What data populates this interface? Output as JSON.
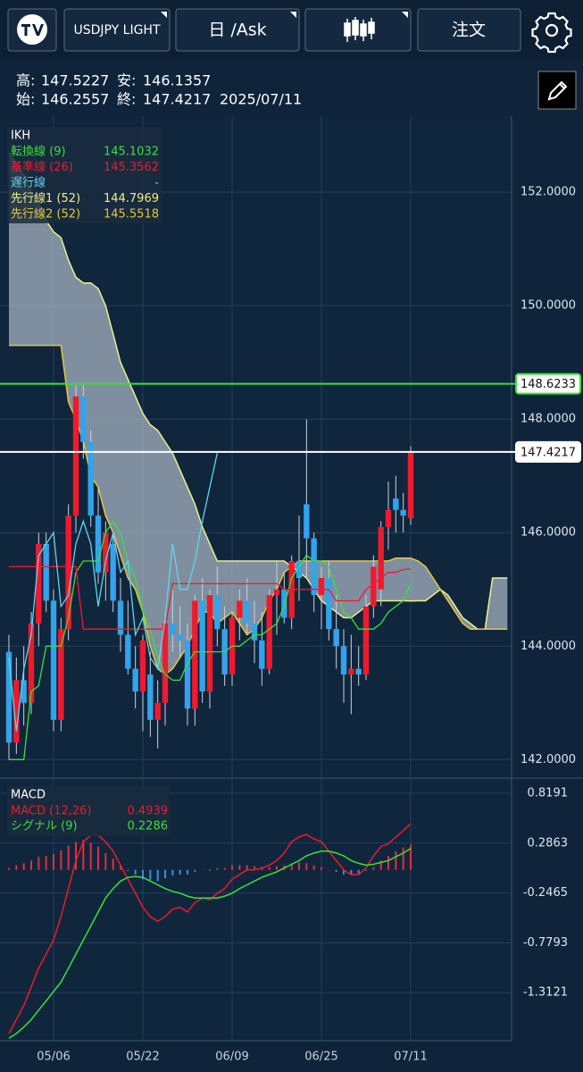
{
  "toolbar": {
    "symbol": "USDJPY LIGHT",
    "timeframe": "日 /Ask",
    "order": "注文"
  },
  "info": {
    "high_label": "高:",
    "high": "147.5227",
    "low_label": "安:",
    "low": "146.1357",
    "open_label": "始:",
    "open": "146.2557",
    "close_label": "終:",
    "close": "147.4217",
    "date": "2025/07/11"
  },
  "chart_data": [
    {
      "type": "candlestick",
      "legend_title": "IKH",
      "categories": [
        null,
        null,
        null,
        null,
        null,
        null,
        "05/06",
        null,
        null,
        null,
        null,
        null,
        null,
        null,
        null,
        null,
        null,
        null,
        "05/22",
        null,
        null,
        null,
        null,
        null,
        null,
        null,
        null,
        null,
        null,
        null,
        "06/09",
        null,
        null,
        null,
        null,
        null,
        null,
        null,
        null,
        null,
        null,
        null,
        "06/25",
        null,
        null,
        null,
        null,
        null,
        null,
        null,
        null,
        null,
        null,
        null,
        "07/11",
        null,
        null,
        null,
        null,
        null,
        null,
        null,
        null,
        null,
        null,
        null,
        null,
        null
      ],
      "open": [
        143.9,
        142.3,
        143.4,
        143.0,
        144.4,
        145.8,
        144.8,
        142.7,
        144.3,
        146.3,
        148.4,
        147.6,
        146.3,
        145.3,
        145.8,
        144.8,
        144.2,
        143.6,
        143.2,
        143.5,
        142.7,
        143.0,
        144.4,
        144.2,
        144.1,
        142.9,
        144.8,
        143.2,
        144.9,
        144.3,
        143.5,
        144.5,
        144.8,
        144.4,
        144.1,
        143.6,
        144.9,
        145.0,
        144.5,
        145.5,
        146.5,
        145.9,
        144.9,
        145.2,
        144.3,
        144.0,
        143.5,
        143.6,
        143.5,
        144.7,
        145.0,
        146.1,
        146.6,
        146.4,
        146.2557,
        null,
        null,
        null,
        null,
        null,
        null,
        null,
        null,
        null,
        null,
        null,
        null,
        null
      ],
      "high": [
        144.2,
        143.8,
        144.0,
        144.6,
        146.0,
        146.0,
        145.0,
        144.5,
        146.5,
        148.6,
        148.6,
        147.8,
        146.8,
        146.2,
        146.0,
        145.2,
        144.8,
        144.0,
        144.2,
        143.9,
        143.4,
        144.6,
        145.0,
        144.7,
        144.4,
        144.9,
        145.2,
        145.0,
        145.4,
        144.7,
        144.6,
        145.0,
        145.2,
        144.8,
        144.6,
        145.0,
        145.5,
        145.3,
        145.6,
        146.3,
        148.0,
        146.0,
        145.4,
        145.5,
        144.9,
        144.3,
        144.2,
        144.0,
        144.9,
        145.6,
        146.2,
        146.9,
        147.0,
        146.7,
        147.5227,
        null,
        null,
        null,
        null,
        null,
        null,
        null,
        null,
        null,
        null,
        null,
        null,
        null
      ],
      "low": [
        142.0,
        142.1,
        142.6,
        142.8,
        144.0,
        144.6,
        142.5,
        142.5,
        144.1,
        146.0,
        147.3,
        146.1,
        145.1,
        144.8,
        144.6,
        143.9,
        143.5,
        142.9,
        142.5,
        142.4,
        142.2,
        142.6,
        143.9,
        143.8,
        142.6,
        142.6,
        143.0,
        142.9,
        144.0,
        143.3,
        143.3,
        144.1,
        144.2,
        143.7,
        143.3,
        143.5,
        144.2,
        144.4,
        144.3,
        144.8,
        145.2,
        144.6,
        144.3,
        144.1,
        143.6,
        143.0,
        142.8,
        143.3,
        143.4,
        144.5,
        144.7,
        145.7,
        146.0,
        146.0,
        146.1357,
        null,
        null,
        null,
        null,
        null,
        null,
        null,
        null,
        null,
        null,
        null,
        null,
        null
      ],
      "close": [
        142.3,
        143.4,
        143.0,
        144.4,
        145.8,
        144.8,
        142.7,
        144.3,
        146.3,
        148.4,
        147.6,
        146.3,
        145.3,
        146.0,
        144.8,
        144.2,
        143.6,
        143.2,
        144.1,
        142.7,
        143.0,
        144.4,
        144.2,
        144.1,
        142.9,
        144.8,
        143.2,
        144.9,
        144.3,
        143.5,
        144.5,
        144.8,
        144.4,
        144.1,
        143.6,
        144.9,
        145.0,
        144.5,
        145.5,
        145.2,
        145.9,
        144.9,
        145.2,
        144.3,
        144.0,
        143.5,
        143.6,
        143.5,
        144.7,
        145.4,
        146.1,
        146.4,
        146.4,
        146.3,
        147.4217,
        null,
        null,
        null,
        null,
        null,
        null,
        null,
        null,
        null,
        null,
        null,
        null,
        null
      ],
      "up_color": "#f01a2c",
      "down_color": "#33a3ea",
      "series": [
        {
          "name": "転換線 (9)",
          "color": "#39e03c",
          "legend_value": "145.1032",
          "values": [
            142.0,
            142.0,
            142.0,
            143.2,
            143.3,
            144.0,
            144.0,
            144.0,
            144.5,
            145.3,
            145.5,
            145.5,
            145.5,
            146.0,
            146.2,
            146.0,
            145.5,
            145.2,
            144.6,
            144.3,
            143.8,
            143.5,
            143.4,
            143.4,
            143.7,
            143.9,
            143.9,
            143.9,
            143.9,
            143.9,
            144.0,
            144.0,
            144.1,
            144.2,
            144.2,
            144.3,
            144.4,
            144.7,
            145.2,
            145.4,
            145.6,
            145.5,
            145.5,
            145.4,
            145.0,
            144.6,
            144.5,
            144.3,
            144.3,
            144.3,
            144.4,
            144.6,
            144.7,
            144.8,
            145.1032,
            null,
            null,
            null,
            null,
            null,
            null,
            null,
            null,
            null,
            null,
            null,
            null,
            null
          ]
        },
        {
          "name": "基準線 (26)",
          "color": "#f01a2c",
          "legend_value": "145.3562",
          "values": [
            145.4,
            145.4,
            145.4,
            145.4,
            145.4,
            145.4,
            145.4,
            145.4,
            145.4,
            145.4,
            144.3,
            144.3,
            144.3,
            144.3,
            144.3,
            144.3,
            144.3,
            144.3,
            144.3,
            144.3,
            144.3,
            144.3,
            145.1,
            145.1,
            145.1,
            145.1,
            145.1,
            145.1,
            145.1,
            145.1,
            145.1,
            145.1,
            145.1,
            145.1,
            145.1,
            145.1,
            145.1,
            145.0,
            145.0,
            145.0,
            145.0,
            145.0,
            145.0,
            145.0,
            144.8,
            144.8,
            144.8,
            144.8,
            145.0,
            145.1,
            145.2,
            145.3,
            145.3,
            145.35,
            145.3562,
            null,
            null,
            null,
            null,
            null,
            null,
            null,
            null,
            null,
            null,
            null,
            null,
            null
          ]
        },
        {
          "name": "遅行線",
          "color": "#5fd6ee",
          "legend_value": "-",
          "values": [
            143.8,
            142.5,
            143.6,
            144.2,
            145.6,
            145.8,
            146.0,
            144.7,
            144.9,
            145.8,
            146.2,
            145.8,
            144.7,
            145.5,
            146.0,
            145.3,
            145.5,
            144.2,
            144.5,
            143.8,
            143.6,
            144.5,
            145.8,
            145.0,
            145.0,
            145.5,
            146.2,
            146.8,
            147.4,
            null,
            null,
            null,
            null,
            null,
            null,
            null,
            null,
            null,
            null,
            null,
            null,
            null,
            null,
            null,
            null,
            null,
            null,
            null,
            null,
            null,
            null,
            null,
            null,
            null,
            null,
            null,
            null,
            null,
            null,
            null,
            null,
            null,
            null,
            null,
            null,
            null,
            null,
            null
          ]
        },
        {
          "name": "先行線1 (52)",
          "color": "#eef08a",
          "legend_value": "144.7969",
          "values": [
            152.7,
            152.5,
            152.3,
            152.0,
            151.8,
            151.5,
            151.3,
            151.2,
            150.8,
            150.5,
            150.4,
            150.4,
            150.3,
            150.0,
            149.5,
            149.0,
            148.7,
            148.4,
            148.1,
            147.9,
            147.8,
            147.6,
            147.4,
            147.1,
            146.8,
            146.5,
            146.1,
            145.8,
            145.5,
            145.5,
            145.5,
            145.5,
            145.5,
            145.5,
            145.5,
            145.5,
            145.5,
            145.5,
            145.4,
            145.3,
            145.2,
            145.0,
            144.8,
            144.7,
            144.6,
            144.5,
            144.5,
            144.6,
            144.7,
            144.8,
            144.8,
            144.8,
            144.8,
            144.8,
            144.7969,
            144.8,
            144.8,
            144.9,
            145.0,
            144.9,
            144.7,
            144.5,
            144.4,
            144.3,
            144.3,
            145.2,
            145.2,
            145.2
          ]
        },
        {
          "name": "先行線2 (52)",
          "color": "#e6c83a",
          "legend_value": "145.5518",
          "values": [
            149.3,
            149.3,
            149.3,
            149.3,
            149.3,
            149.3,
            149.3,
            149.3,
            148.3,
            148.0,
            147.6,
            147.0,
            146.8,
            146.3,
            146.0,
            145.6,
            145.2,
            145.0,
            144.6,
            144.0,
            143.6,
            143.5,
            143.6,
            143.8,
            144.0,
            144.3,
            144.6,
            144.6,
            144.4,
            144.5,
            144.6,
            144.4,
            144.2,
            144.3,
            144.5,
            144.8,
            145.0,
            145.3,
            145.4,
            145.5,
            145.5,
            145.5,
            145.5,
            145.5,
            145.5,
            145.5,
            145.5,
            145.5,
            145.5,
            145.5,
            145.5,
            145.5,
            145.55,
            145.55,
            145.5518,
            145.5,
            145.4,
            145.2,
            145.0,
            144.8,
            144.6,
            144.4,
            144.3,
            144.3,
            144.3,
            144.3,
            144.3,
            144.3
          ]
        }
      ],
      "cloud_color": "#c3d0dc",
      "hlines": [
        {
          "value": 148.6233,
          "color": "#3ddc3d"
        },
        {
          "value": 147.4217,
          "color": "#ffffff"
        }
      ],
      "ylim": [
        141.69,
        153.34
      ],
      "yticks": [
        {
          "value": 142,
          "label": "142.0000"
        },
        {
          "value": 144,
          "label": "144.0000"
        },
        {
          "value": 146,
          "label": "146.0000"
        },
        {
          "value": 148,
          "label": "148.0000"
        },
        {
          "value": 150,
          "label": "150.0000"
        },
        {
          "value": 152,
          "label": "152.0000"
        }
      ]
    },
    {
      "type": "macd",
      "legend_title": "MACD",
      "series": [
        {
          "name": "MACD (12,26)",
          "color": "#f01a2c",
          "legend_value": "0.4939",
          "values": [
            -1.75,
            -1.6,
            -1.45,
            -1.25,
            -1.05,
            -0.9,
            -0.75,
            -0.5,
            -0.2,
            0.1,
            0.3,
            0.37,
            0.37,
            0.3,
            0.2,
            0.05,
            -0.1,
            -0.25,
            -0.4,
            -0.5,
            -0.55,
            -0.5,
            -0.42,
            -0.4,
            -0.45,
            -0.35,
            -0.3,
            -0.32,
            -0.25,
            -0.2,
            -0.1,
            -0.05,
            0,
            0,
            0.02,
            0.05,
            0.1,
            0.18,
            0.3,
            0.35,
            0.38,
            0.33,
            0.3,
            0.2,
            0.1,
            0,
            -0.05,
            -0.05,
            0.02,
            0.15,
            0.25,
            0.28,
            0.35,
            0.42,
            0.4939,
            null,
            null,
            null,
            null,
            null,
            null,
            null,
            null,
            null,
            null,
            null,
            null,
            null
          ]
        },
        {
          "name": "シグナル (9)",
          "color": "#39e03c",
          "legend_value": "0.2286",
          "values": [
            -1.8,
            -1.75,
            -1.68,
            -1.6,
            -1.5,
            -1.4,
            -1.3,
            -1.2,
            -1.05,
            -0.9,
            -0.75,
            -0.6,
            -0.45,
            -0.3,
            -0.2,
            -0.12,
            -0.08,
            -0.07,
            -0.08,
            -0.12,
            -0.16,
            -0.2,
            -0.23,
            -0.25,
            -0.28,
            -0.3,
            -0.3,
            -0.3,
            -0.3,
            -0.28,
            -0.25,
            -0.2,
            -0.16,
            -0.12,
            -0.08,
            -0.05,
            -0.02,
            0.02,
            0.06,
            0.1,
            0.15,
            0.18,
            0.2,
            0.2,
            0.18,
            0.15,
            0.1,
            0.07,
            0.05,
            0.06,
            0.08,
            0.1,
            0.14,
            0.18,
            0.2286,
            null,
            null,
            null,
            null,
            null,
            null,
            null,
            null,
            null,
            null,
            null,
            null,
            null
          ]
        }
      ],
      "histogram": {
        "up_color": "#e0303c",
        "down_color": "#3a8ee0",
        "values": [
          0.02,
          0.05,
          0.07,
          0.1,
          0.14,
          0.15,
          0.17,
          0.21,
          0.26,
          0.3,
          0.32,
          0.29,
          0.25,
          0.18,
          0.12,
          0.05,
          -0.01,
          -0.05,
          -0.1,
          -0.11,
          -0.12,
          -0.09,
          -0.06,
          -0.05,
          -0.05,
          -0.02,
          0,
          -0.01,
          0.02,
          0.02,
          0.05,
          0.05,
          0.05,
          0.04,
          0.03,
          0.03,
          0.04,
          0.05,
          0.07,
          0.08,
          0.07,
          0.05,
          0.03,
          0,
          -0.02,
          -0.05,
          -0.05,
          -0.04,
          -0.01,
          0.03,
          0.1,
          0.15,
          0.2,
          0.24,
          0.27,
          null,
          null,
          null,
          null,
          null,
          null,
          null,
          null,
          null,
          null,
          null,
          null,
          null
        ]
      },
      "ylim": [
        -1.807,
        0.943
      ],
      "yticks": [
        -1.3121,
        -0.7793,
        -0.2465,
        0.2863,
        0.8191
      ]
    }
  ]
}
